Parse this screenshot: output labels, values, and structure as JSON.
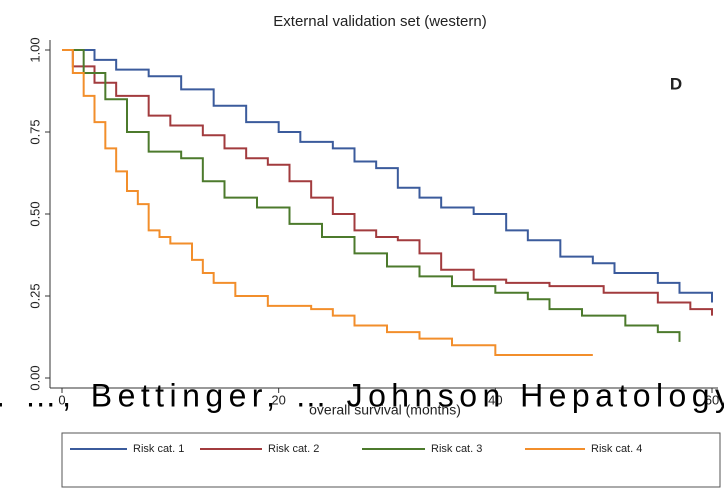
{
  "chart_data": {
    "type": "step",
    "title": "External validation set (western)",
    "xlabel": "overall survival (months)",
    "annotation": "D",
    "overlay_text": ". …, Bettinger, … Johnson Hepatology",
    "xlim": [
      0,
      60
    ],
    "xticks": [
      0,
      20,
      40,
      60
    ],
    "ylim": [
      0,
      1
    ],
    "yticks": [
      {
        "value": 0,
        "label": "0.00"
      },
      {
        "value": 0.25,
        "label": "0.25"
      },
      {
        "value": 0.5,
        "label": "0.50"
      },
      {
        "value": 0.75,
        "label": "0.75"
      },
      {
        "value": 1,
        "label": "1.00"
      }
    ],
    "series": [
      {
        "name": "Risk cat. 1",
        "color": "#3b5b9c",
        "x": [
          0,
          3,
          5,
          8,
          11,
          14,
          17,
          20,
          22,
          25,
          27,
          29,
          31,
          33,
          35,
          38,
          41,
          43,
          46,
          49,
          51,
          55,
          57,
          60
        ],
        "values": [
          1.0,
          0.97,
          0.94,
          0.92,
          0.88,
          0.83,
          0.78,
          0.75,
          0.72,
          0.7,
          0.66,
          0.64,
          0.58,
          0.55,
          0.52,
          0.5,
          0.45,
          0.42,
          0.37,
          0.35,
          0.32,
          0.29,
          0.26,
          0.23
        ]
      },
      {
        "name": "Risk cat. 2",
        "color": "#a23b3e",
        "x": [
          0,
          1,
          3,
          5,
          8,
          10,
          13,
          15,
          17,
          19,
          21,
          23,
          25,
          27,
          29,
          31,
          33,
          35,
          38,
          41,
          45,
          50,
          55,
          58,
          60
        ],
        "values": [
          1.0,
          0.95,
          0.9,
          0.86,
          0.8,
          0.77,
          0.74,
          0.7,
          0.67,
          0.65,
          0.6,
          0.55,
          0.5,
          0.45,
          0.43,
          0.42,
          0.38,
          0.33,
          0.3,
          0.29,
          0.28,
          0.26,
          0.23,
          0.21,
          0.19
        ]
      },
      {
        "name": "Risk cat. 3",
        "color": "#4c7a2c",
        "x": [
          0,
          2,
          4,
          6,
          8,
          11,
          13,
          15,
          18,
          21,
          24,
          27,
          30,
          33,
          36,
          40,
          43,
          45,
          48,
          52,
          55,
          57
        ],
        "values": [
          1.0,
          0.93,
          0.85,
          0.75,
          0.69,
          0.67,
          0.6,
          0.55,
          0.52,
          0.47,
          0.43,
          0.38,
          0.34,
          0.31,
          0.28,
          0.26,
          0.24,
          0.21,
          0.19,
          0.16,
          0.14,
          0.11
        ]
      },
      {
        "name": "Risk cat. 4",
        "color": "#f28e2b",
        "x": [
          0,
          1,
          2,
          3,
          4,
          5,
          6,
          7,
          8,
          9,
          10,
          12,
          13,
          14,
          16,
          19,
          23,
          25,
          27,
          30,
          33,
          36,
          40,
          45,
          49
        ],
        "values": [
          1.0,
          0.93,
          0.86,
          0.78,
          0.7,
          0.63,
          0.57,
          0.53,
          0.45,
          0.43,
          0.41,
          0.36,
          0.32,
          0.29,
          0.25,
          0.22,
          0.21,
          0.19,
          0.16,
          0.14,
          0.12,
          0.1,
          0.07,
          0.07,
          0.07
        ]
      }
    ]
  }
}
